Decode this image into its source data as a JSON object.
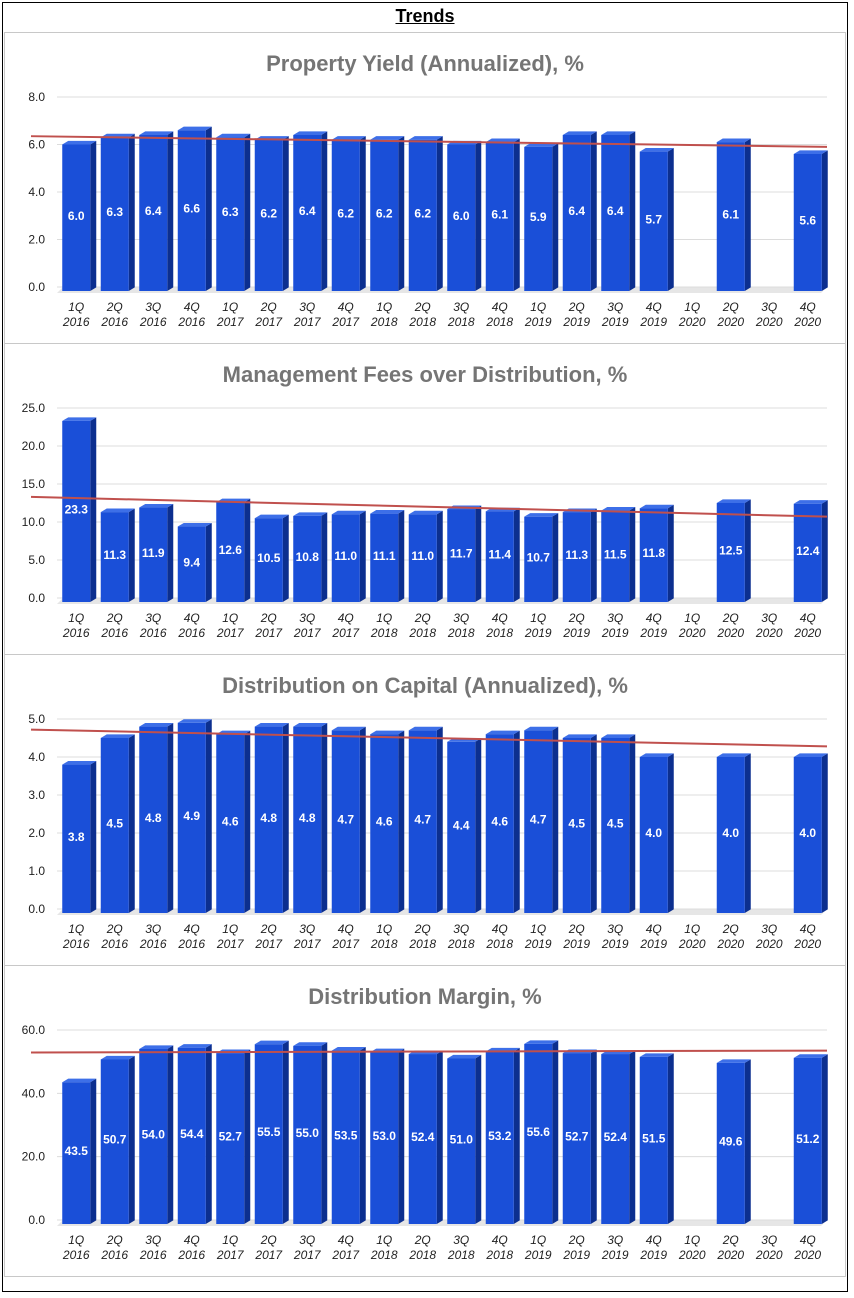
{
  "page": {
    "title": "Trends"
  },
  "colors": {
    "bar_front": "#1a4fd8",
    "bar_side": "#0c2f8f",
    "bar_top": "#3d6fe8",
    "trend": "#c0504d",
    "floor": "#e6e6e6"
  },
  "chart_data": [
    {
      "type": "bar",
      "title": "Property Yield (Annualized), %",
      "ylim": [
        0,
        8
      ],
      "yticks": [
        "0.0",
        "2.0",
        "4.0",
        "6.0",
        "8.0"
      ],
      "quarters": [
        "1Q",
        "2Q",
        "3Q",
        "4Q",
        "1Q",
        "2Q",
        "3Q",
        "4Q",
        "1Q",
        "2Q",
        "3Q",
        "4Q",
        "1Q",
        "2Q",
        "3Q",
        "4Q",
        "1Q",
        "2Q",
        "3Q",
        "4Q"
      ],
      "years": [
        "2016",
        "2016",
        "2016",
        "2016",
        "2017",
        "2017",
        "2017",
        "2017",
        "2018",
        "2018",
        "2018",
        "2018",
        "2019",
        "2019",
        "2019",
        "2019",
        "2020",
        "2020",
        "2020",
        "2020"
      ],
      "values": [
        6.0,
        6.3,
        6.4,
        6.6,
        6.3,
        6.2,
        6.4,
        6.2,
        6.2,
        6.2,
        6.0,
        6.1,
        5.9,
        6.4,
        6.4,
        5.7,
        null,
        6.1,
        null,
        5.6
      ],
      "labels": [
        "6.0",
        "6.3",
        "6.4",
        "6.6",
        "6.3",
        "6.2",
        "6.4",
        "6.2",
        "6.2",
        "6.2",
        "6.0",
        "6.1",
        "5.9",
        "6.4",
        "6.4",
        "5.7",
        "",
        "6.1",
        "",
        "5.6"
      ],
      "trendline": [
        6.35,
        5.9
      ]
    },
    {
      "type": "bar",
      "title": "Management Fees over Distribution, %",
      "ylim": [
        0,
        25
      ],
      "yticks": [
        "0.0",
        "5.0",
        "10.0",
        "15.0",
        "20.0",
        "25.0"
      ],
      "quarters": [
        "1Q",
        "2Q",
        "3Q",
        "4Q",
        "1Q",
        "2Q",
        "3Q",
        "4Q",
        "1Q",
        "2Q",
        "3Q",
        "4Q",
        "1Q",
        "2Q",
        "3Q",
        "4Q",
        "1Q",
        "2Q",
        "3Q",
        "4Q"
      ],
      "years": [
        "2016",
        "2016",
        "2016",
        "2016",
        "2017",
        "2017",
        "2017",
        "2017",
        "2018",
        "2018",
        "2018",
        "2018",
        "2019",
        "2019",
        "2019",
        "2019",
        "2020",
        "2020",
        "2020",
        "2020"
      ],
      "values": [
        23.3,
        11.3,
        11.9,
        9.4,
        12.6,
        10.5,
        10.8,
        11.0,
        11.1,
        11.0,
        11.7,
        11.4,
        10.7,
        11.3,
        11.5,
        11.8,
        null,
        12.5,
        null,
        12.4
      ],
      "labels": [
        "23.3",
        "11.3",
        "11.9",
        "9.4",
        "12.6",
        "10.5",
        "10.8",
        "11.0",
        "11.1",
        "11.0",
        "11.7",
        "11.4",
        "10.7",
        "11.3",
        "11.5",
        "11.8",
        "",
        "12.5",
        "",
        "12.4"
      ],
      "trendline": [
        13.3,
        10.7
      ]
    },
    {
      "type": "bar",
      "title": "Distribution on Capital (Annualized), %",
      "ylim": [
        0,
        5
      ],
      "yticks": [
        "0.0",
        "1.0",
        "2.0",
        "3.0",
        "4.0",
        "5.0"
      ],
      "quarters": [
        "1Q",
        "2Q",
        "3Q",
        "4Q",
        "1Q",
        "2Q",
        "3Q",
        "4Q",
        "1Q",
        "2Q",
        "3Q",
        "4Q",
        "1Q",
        "2Q",
        "3Q",
        "4Q",
        "1Q",
        "2Q",
        "3Q",
        "4Q"
      ],
      "years": [
        "2016",
        "2016",
        "2016",
        "2016",
        "2017",
        "2017",
        "2017",
        "2017",
        "2018",
        "2018",
        "2018",
        "2018",
        "2019",
        "2019",
        "2019",
        "2019",
        "2020",
        "2020",
        "2020",
        "2020"
      ],
      "values": [
        3.8,
        4.5,
        4.8,
        4.9,
        4.6,
        4.8,
        4.8,
        4.7,
        4.6,
        4.7,
        4.4,
        4.6,
        4.7,
        4.5,
        4.5,
        4.0,
        null,
        4.0,
        null,
        4.0
      ],
      "labels": [
        "3.8",
        "4.5",
        "4.8",
        "4.9",
        "4.6",
        "4.8",
        "4.8",
        "4.7",
        "4.6",
        "4.7",
        "4.4",
        "4.6",
        "4.7",
        "4.5",
        "4.5",
        "4.0",
        "",
        "4.0",
        "",
        "4.0"
      ],
      "trendline": [
        4.72,
        4.28
      ]
    },
    {
      "type": "bar",
      "title": "Distribution Margin, %",
      "ylim": [
        0,
        60
      ],
      "yticks": [
        "0.0",
        "20.0",
        "40.0",
        "60.0"
      ],
      "quarters": [
        "1Q",
        "2Q",
        "3Q",
        "4Q",
        "1Q",
        "2Q",
        "3Q",
        "4Q",
        "1Q",
        "2Q",
        "3Q",
        "4Q",
        "1Q",
        "2Q",
        "3Q",
        "4Q",
        "1Q",
        "2Q",
        "3Q",
        "4Q"
      ],
      "years": [
        "2016",
        "2016",
        "2016",
        "2016",
        "2017",
        "2017",
        "2017",
        "2017",
        "2018",
        "2018",
        "2018",
        "2018",
        "2019",
        "2019",
        "2019",
        "2019",
        "2020",
        "2020",
        "2020",
        "2020"
      ],
      "values": [
        43.5,
        50.7,
        54.0,
        54.4,
        52.7,
        55.5,
        55.0,
        53.5,
        53.0,
        52.4,
        51.0,
        53.2,
        55.6,
        52.7,
        52.4,
        51.5,
        null,
        49.6,
        null,
        51.2
      ],
      "labels": [
        "43.5",
        "50.7",
        "54.0",
        "54.4",
        "52.7",
        "55.5",
        "55.0",
        "53.5",
        "53.0",
        "52.4",
        "51.0",
        "53.2",
        "55.6",
        "52.7",
        "52.4",
        "51.5",
        "",
        "49.6",
        "",
        "51.2"
      ],
      "trendline": [
        52.9,
        53.5
      ]
    }
  ]
}
